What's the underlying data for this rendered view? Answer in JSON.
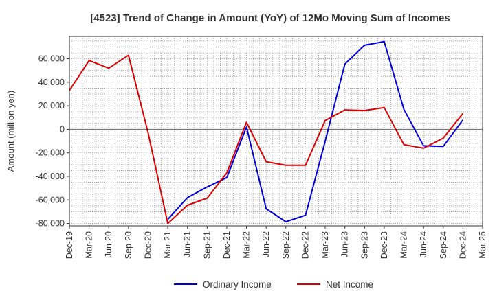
{
  "chart_data": {
    "type": "line",
    "title": "[4523]  Trend of Change in Amount (YoY) of 12Mo Moving Sum of Incomes",
    "xlabel": "",
    "ylabel": "Amount (million yen)",
    "x": [
      "Dec-19",
      "Mar-20",
      "Jun-20",
      "Sep-20",
      "Dec-20",
      "Mar-21",
      "Jun-21",
      "Sep-21",
      "Dec-21",
      "Mar-22",
      "Jun-22",
      "Sep-22",
      "Dec-22",
      "Mar-23",
      "Jun-23",
      "Sep-23",
      "Dec-23",
      "Mar-24",
      "Jun-24",
      "Sep-24",
      "Dec-24",
      "Mar-25"
    ],
    "yticks": [
      60000,
      40000,
      20000,
      0,
      -20000,
      -40000,
      -60000,
      -80000
    ],
    "ytick_labels": [
      "60,000",
      "40,000",
      "20,000",
      "0",
      "-20,000",
      "-40,000",
      "-60,000",
      "-80,000"
    ],
    "ylim": [
      -82000,
      79000
    ],
    "grid": true,
    "legend_position": "bottom",
    "series": [
      {
        "name": "Ordinary Income",
        "color": "#0000dd",
        "values": [
          null,
          null,
          null,
          null,
          null,
          -76500,
          -58000,
          -49000,
          -41000,
          2000,
          -67500,
          -78500,
          -73000,
          -10000,
          55500,
          71500,
          74500,
          17000,
          -14000,
          -14500,
          8000,
          null
        ]
      },
      {
        "name": "Net Income",
        "color": "#dd0000",
        "values": [
          33000,
          58500,
          52000,
          63000,
          -3000,
          -80000,
          -64500,
          -58500,
          -37000,
          6000,
          -27500,
          -30500,
          -30500,
          7500,
          16500,
          16000,
          18500,
          -13000,
          -16000,
          -7500,
          13500,
          null
        ]
      }
    ]
  }
}
